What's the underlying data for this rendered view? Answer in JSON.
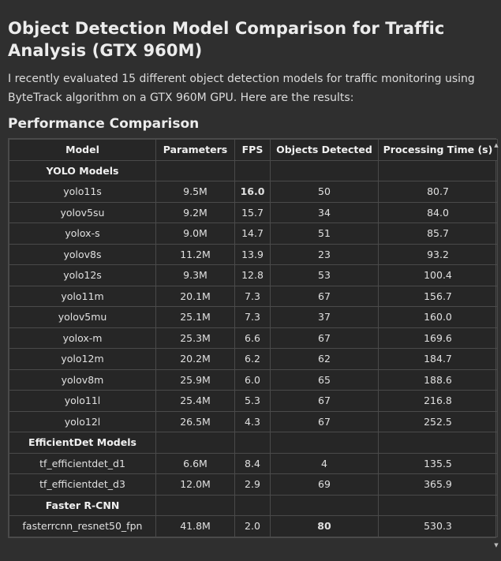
{
  "page": {
    "title": "Object Detection Model Comparison for Traffic Analysis (GTX 960M)",
    "intro": "I recently evaluated 15 different object detection models for traffic monitoring using ByteTrack algorithm on a GTX 960M GPU. Here are the results:",
    "section_heading": "Performance Comparison"
  },
  "table": {
    "headers": {
      "model": "Model",
      "parameters": "Parameters",
      "fps": "FPS",
      "objects": "Objects Detected",
      "time": "Processing Time (s)"
    },
    "groups": [
      {
        "name": "YOLO Models",
        "rows": [
          {
            "model": "yolo11s",
            "parameters": "9.5M",
            "fps": "16.0",
            "objects": "50",
            "time": "80.7"
          },
          {
            "model": "yolov5su",
            "parameters": "9.2M",
            "fps": "15.7",
            "objects": "34",
            "time": "84.0"
          },
          {
            "model": "yolox-s",
            "parameters": "9.0M",
            "fps": "14.7",
            "objects": "51",
            "time": "85.7"
          },
          {
            "model": "yolov8s",
            "parameters": "11.2M",
            "fps": "13.9",
            "objects": "23",
            "time": "93.2"
          },
          {
            "model": "yolo12s",
            "parameters": "9.3M",
            "fps": "12.8",
            "objects": "53",
            "time": "100.4"
          },
          {
            "model": "yolo11m",
            "parameters": "20.1M",
            "fps": "7.3",
            "objects": "67",
            "time": "156.7"
          },
          {
            "model": "yolov5mu",
            "parameters": "25.1M",
            "fps": "7.3",
            "objects": "37",
            "time": "160.0"
          },
          {
            "model": "yolox-m",
            "parameters": "25.3M",
            "fps": "6.6",
            "objects": "67",
            "time": "169.6"
          },
          {
            "model": "yolo12m",
            "parameters": "20.2M",
            "fps": "6.2",
            "objects": "62",
            "time": "184.7"
          },
          {
            "model": "yolov8m",
            "parameters": "25.9M",
            "fps": "6.0",
            "objects": "65",
            "time": "188.6"
          },
          {
            "model": "yolo11l",
            "parameters": "25.4M",
            "fps": "5.3",
            "objects": "67",
            "time": "216.8"
          },
          {
            "model": "yolo12l",
            "parameters": "26.5M",
            "fps": "4.3",
            "objects": "67",
            "time": "252.5"
          }
        ]
      },
      {
        "name": "EfficientDet Models",
        "rows": [
          {
            "model": "tf_efficientdet_d1",
            "parameters": "6.6M",
            "fps": "8.4",
            "objects": "4",
            "time": "135.5"
          },
          {
            "model": "tf_efficientdet_d3",
            "parameters": "12.0M",
            "fps": "2.9",
            "objects": "69",
            "time": "365.9"
          }
        ]
      },
      {
        "name": "Faster R-CNN",
        "rows": [
          {
            "model": "fasterrcnn_resnet50_fpn",
            "parameters": "41.8M",
            "fps": "2.0",
            "objects": "80",
            "time": "530.3"
          }
        ]
      }
    ],
    "bold_cells": [
      {
        "model": "yolo11s",
        "column": "fps"
      },
      {
        "model": "fasterrcnn_resnet50_fpn",
        "column": "objects"
      }
    ]
  },
  "icons": {
    "scroll_up": "scroll-up-arrow-icon",
    "scroll_down": "scroll-down-arrow-icon"
  },
  "colors": {
    "background": "#2f2f2f",
    "table_background": "#262626",
    "border": "#4a4a4a",
    "text": "#e6e6e6"
  }
}
